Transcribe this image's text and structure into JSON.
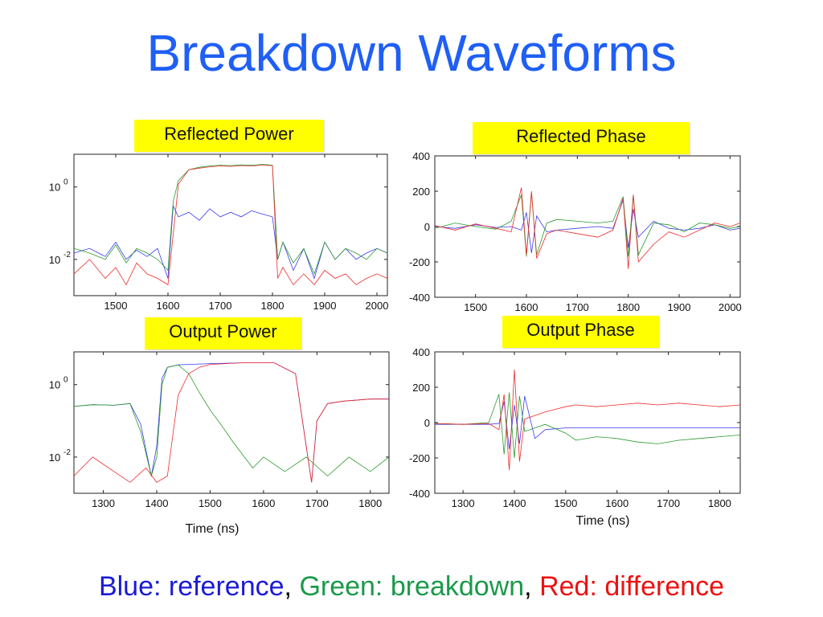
{
  "title": "Breakdown Waveforms",
  "footer": {
    "blue": "Blue: reference",
    "sep1": ", ",
    "green": "Green: breakdown",
    "sep2": ", ",
    "red": "Red: difference",
    "colors": {
      "blue": "#1a1ad6",
      "green": "#1a9a4a",
      "red": "#ee1111"
    }
  },
  "series_colors": {
    "reference": "#3a3aee",
    "breakdown": "#2a9a2a",
    "difference": "#ee2a2a"
  },
  "panels": [
    {
      "label": "Reflected Power"
    },
    {
      "label": "Reflected Phase"
    },
    {
      "label": "Output Power"
    },
    {
      "label": "Output Phase"
    }
  ],
  "chart_data": [
    {
      "type": "line",
      "title": "Reflected Power",
      "yscale": "log",
      "xlim": [
        1420,
        2020
      ],
      "ylim": [
        0.001,
        8
      ],
      "xticks": [
        1500,
        1600,
        1700,
        1800,
        1900,
        2000
      ],
      "yticks": [
        {
          "value": 1,
          "base": "10",
          "exp": "0"
        },
        {
          "value": 0.01,
          "base": "10",
          "exp": "-2"
        }
      ],
      "xlabel": "",
      "series": [
        {
          "name": "Blue: reference",
          "x": [
            1420,
            1450,
            1480,
            1500,
            1520,
            1540,
            1560,
            1580,
            1600,
            1610,
            1620,
            1640,
            1660,
            1680,
            1700,
            1720,
            1740,
            1760,
            1780,
            1800,
            1810,
            1820,
            1840,
            1860,
            1880,
            1900,
            1920,
            1940,
            1960,
            1980,
            2000,
            2020
          ],
          "y": [
            0.015,
            0.02,
            0.012,
            0.03,
            0.01,
            0.018,
            0.012,
            0.02,
            0.003,
            0.3,
            0.15,
            0.2,
            0.12,
            0.25,
            0.15,
            0.2,
            0.15,
            0.22,
            0.18,
            0.15,
            0.01,
            0.03,
            0.005,
            0.02,
            0.003,
            0.03,
            0.01,
            0.02,
            0.01,
            0.015,
            0.02,
            0.015
          ]
        },
        {
          "name": "Green: breakdown",
          "x": [
            1420,
            1450,
            1480,
            1500,
            1520,
            1540,
            1560,
            1580,
            1600,
            1610,
            1620,
            1640,
            1660,
            1680,
            1700,
            1720,
            1740,
            1760,
            1780,
            1800,
            1810,
            1820,
            1840,
            1860,
            1880,
            1900,
            1920,
            1940,
            1960,
            1980,
            2000,
            2020
          ],
          "y": [
            0.02,
            0.015,
            0.01,
            0.025,
            0.008,
            0.02,
            0.015,
            0.01,
            0.005,
            0.4,
            1.5,
            3,
            3.5,
            3.8,
            4,
            3.9,
            4.1,
            4,
            4.2,
            4.0,
            0.01,
            0.03,
            0.008,
            0.02,
            0.004,
            0.03,
            0.01,
            0.02,
            0.015,
            0.01,
            0.02,
            0.015
          ]
        },
        {
          "name": "Red: difference",
          "x": [
            1420,
            1450,
            1480,
            1500,
            1520,
            1540,
            1560,
            1580,
            1600,
            1610,
            1620,
            1640,
            1660,
            1680,
            1700,
            1720,
            1740,
            1760,
            1780,
            1800,
            1810,
            1820,
            1840,
            1860,
            1880,
            1900,
            1920,
            1940,
            1960,
            1980,
            2000,
            2020
          ],
          "y": [
            0.004,
            0.01,
            0.003,
            0.006,
            0.002,
            0.008,
            0.004,
            0.003,
            0.002,
            0.05,
            1.2,
            3,
            3.3,
            3.6,
            3.8,
            3.7,
            3.9,
            3.8,
            4.0,
            3.9,
            0.003,
            0.006,
            0.002,
            0.004,
            0.002,
            0.005,
            0.003,
            0.004,
            0.002,
            0.003,
            0.004,
            0.003
          ]
        }
      ]
    },
    {
      "type": "line",
      "title": "Reflected Phase",
      "xlim": [
        1420,
        2020
      ],
      "ylim": [
        -400,
        400
      ],
      "xticks": [
        1500,
        1600,
        1700,
        1800,
        1900,
        2000
      ],
      "yticks": [
        400,
        200,
        0,
        -200,
        -400
      ],
      "xlabel": "",
      "series": [
        {
          "name": "Blue: reference",
          "x": [
            1420,
            1460,
            1500,
            1540,
            1570,
            1590,
            1600,
            1610,
            1620,
            1640,
            1660,
            1700,
            1740,
            1770,
            1790,
            1800,
            1810,
            1820,
            1850,
            1880,
            1910,
            1940,
            1970,
            2000,
            2020
          ],
          "y": [
            0,
            -10,
            10,
            -5,
            0,
            -20,
            80,
            -150,
            60,
            -30,
            -20,
            -10,
            0,
            -10,
            150,
            -120,
            100,
            -60,
            30,
            -10,
            -20,
            -10,
            10,
            -20,
            -10
          ]
        },
        {
          "name": "Green: breakdown",
          "x": [
            1420,
            1460,
            1500,
            1540,
            1570,
            1590,
            1600,
            1610,
            1620,
            1640,
            1660,
            1700,
            1740,
            1770,
            1790,
            1800,
            1810,
            1820,
            1850,
            1880,
            1910,
            1940,
            1970,
            2000,
            2020
          ],
          "y": [
            -10,
            20,
            0,
            -15,
            30,
            180,
            -170,
            190,
            -160,
            20,
            40,
            30,
            20,
            30,
            170,
            -170,
            180,
            -160,
            20,
            10,
            -30,
            20,
            10,
            -10,
            0
          ]
        },
        {
          "name": "Red: difference",
          "x": [
            1420,
            1460,
            1500,
            1540,
            1570,
            1590,
            1600,
            1610,
            1620,
            1640,
            1660,
            1700,
            1740,
            1770,
            1790,
            1800,
            1810,
            1820,
            1850,
            1880,
            1910,
            1940,
            1970,
            2000,
            2020
          ],
          "y": [
            5,
            -20,
            15,
            -10,
            -30,
            220,
            -160,
            200,
            -180,
            -40,
            -20,
            -40,
            -60,
            -20,
            160,
            -240,
            180,
            -200,
            -100,
            -30,
            -60,
            -20,
            20,
            0,
            20
          ]
        }
      ]
    },
    {
      "type": "line",
      "title": "Output Power",
      "yscale": "log",
      "xlim": [
        1245,
        1835
      ],
      "ylim": [
        0.001,
        8
      ],
      "xticks": [
        1300,
        1400,
        1500,
        1600,
        1700,
        1800
      ],
      "yticks": [
        {
          "value": 1,
          "base": "10",
          "exp": "0"
        },
        {
          "value": 0.01,
          "base": "10",
          "exp": "-2"
        }
      ],
      "xlabel": "Time (ns)",
      "series": [
        {
          "name": "Blue: reference",
          "x": [
            1245,
            1280,
            1320,
            1350,
            1370,
            1390,
            1400,
            1410,
            1420,
            1440,
            1460,
            1500,
            1560,
            1620,
            1660,
            1680,
            1690,
            1700,
            1720,
            1750,
            1800,
            1835
          ],
          "y": [
            0.25,
            0.28,
            0.27,
            0.3,
            0.08,
            0.003,
            0.02,
            1.5,
            3,
            3.5,
            3.6,
            3.8,
            4,
            4,
            2,
            0.02,
            0.002,
            0.1,
            0.3,
            0.35,
            0.4,
            0.4
          ]
        },
        {
          "name": "Green: breakdown",
          "x": [
            1245,
            1280,
            1320,
            1350,
            1370,
            1390,
            1400,
            1410,
            1420,
            1440,
            1460,
            1480,
            1500,
            1520,
            1540,
            1560,
            1580,
            1600,
            1640,
            1680,
            1720,
            1760,
            1800,
            1835
          ],
          "y": [
            0.25,
            0.28,
            0.27,
            0.3,
            0.05,
            0.003,
            0.01,
            1,
            3,
            3.5,
            2,
            0.6,
            0.2,
            0.08,
            0.03,
            0.012,
            0.005,
            0.01,
            0.004,
            0.01,
            0.003,
            0.01,
            0.004,
            0.01
          ]
        },
        {
          "name": "Red: difference",
          "x": [
            1245,
            1280,
            1320,
            1350,
            1380,
            1400,
            1420,
            1440,
            1460,
            1480,
            1500,
            1560,
            1620,
            1660,
            1680,
            1690,
            1700,
            1720,
            1750,
            1800,
            1835
          ],
          "y": [
            0.003,
            0.01,
            0.004,
            0.002,
            0.005,
            0.002,
            0.003,
            0.5,
            2,
            3,
            3.6,
            4,
            4,
            2,
            0.02,
            0.002,
            0.1,
            0.3,
            0.35,
            0.4,
            0.4
          ]
        }
      ]
    },
    {
      "type": "line",
      "title": "Output Phase",
      "xlim": [
        1245,
        1840
      ],
      "ylim": [
        -400,
        400
      ],
      "xticks": [
        1300,
        1400,
        1500,
        1600,
        1700,
        1800
      ],
      "yticks": [
        400,
        200,
        0,
        -200,
        -400
      ],
      "xlabel": "Time (ns)",
      "series": [
        {
          "name": "Blue: reference",
          "x": [
            1245,
            1300,
            1350,
            1370,
            1380,
            1390,
            1400,
            1410,
            1420,
            1440,
            1460,
            1500,
            1560,
            1600,
            1640,
            1680,
            1720,
            1760,
            1800,
            1840
          ],
          "y": [
            -10,
            -10,
            -10,
            -5,
            120,
            -150,
            100,
            -120,
            150,
            -90,
            -40,
            -30,
            -30,
            -30,
            -30,
            -30,
            -30,
            -30,
            -30,
            -30
          ]
        },
        {
          "name": "Green: breakdown",
          "x": [
            1245,
            1300,
            1350,
            1370,
            1380,
            1390,
            1400,
            1410,
            1420,
            1440,
            1460,
            1500,
            1520,
            1560,
            1600,
            1640,
            1680,
            1720,
            1760,
            1800,
            1840
          ],
          "y": [
            -5,
            -10,
            0,
            160,
            -180,
            170,
            -200,
            150,
            -50,
            -30,
            -10,
            -60,
            -100,
            -80,
            -90,
            -110,
            -120,
            -100,
            -90,
            -80,
            -70
          ]
        },
        {
          "name": "Red: difference",
          "x": [
            1245,
            1300,
            1350,
            1370,
            1380,
            1390,
            1400,
            1410,
            1420,
            1440,
            1460,
            1500,
            1520,
            1560,
            1600,
            1640,
            1680,
            1720,
            1760,
            1800,
            1840
          ],
          "y": [
            -5,
            -10,
            -5,
            -40,
            160,
            -270,
            300,
            -220,
            20,
            40,
            60,
            90,
            100,
            90,
            100,
            110,
            100,
            110,
            100,
            90,
            100
          ]
        }
      ]
    }
  ]
}
